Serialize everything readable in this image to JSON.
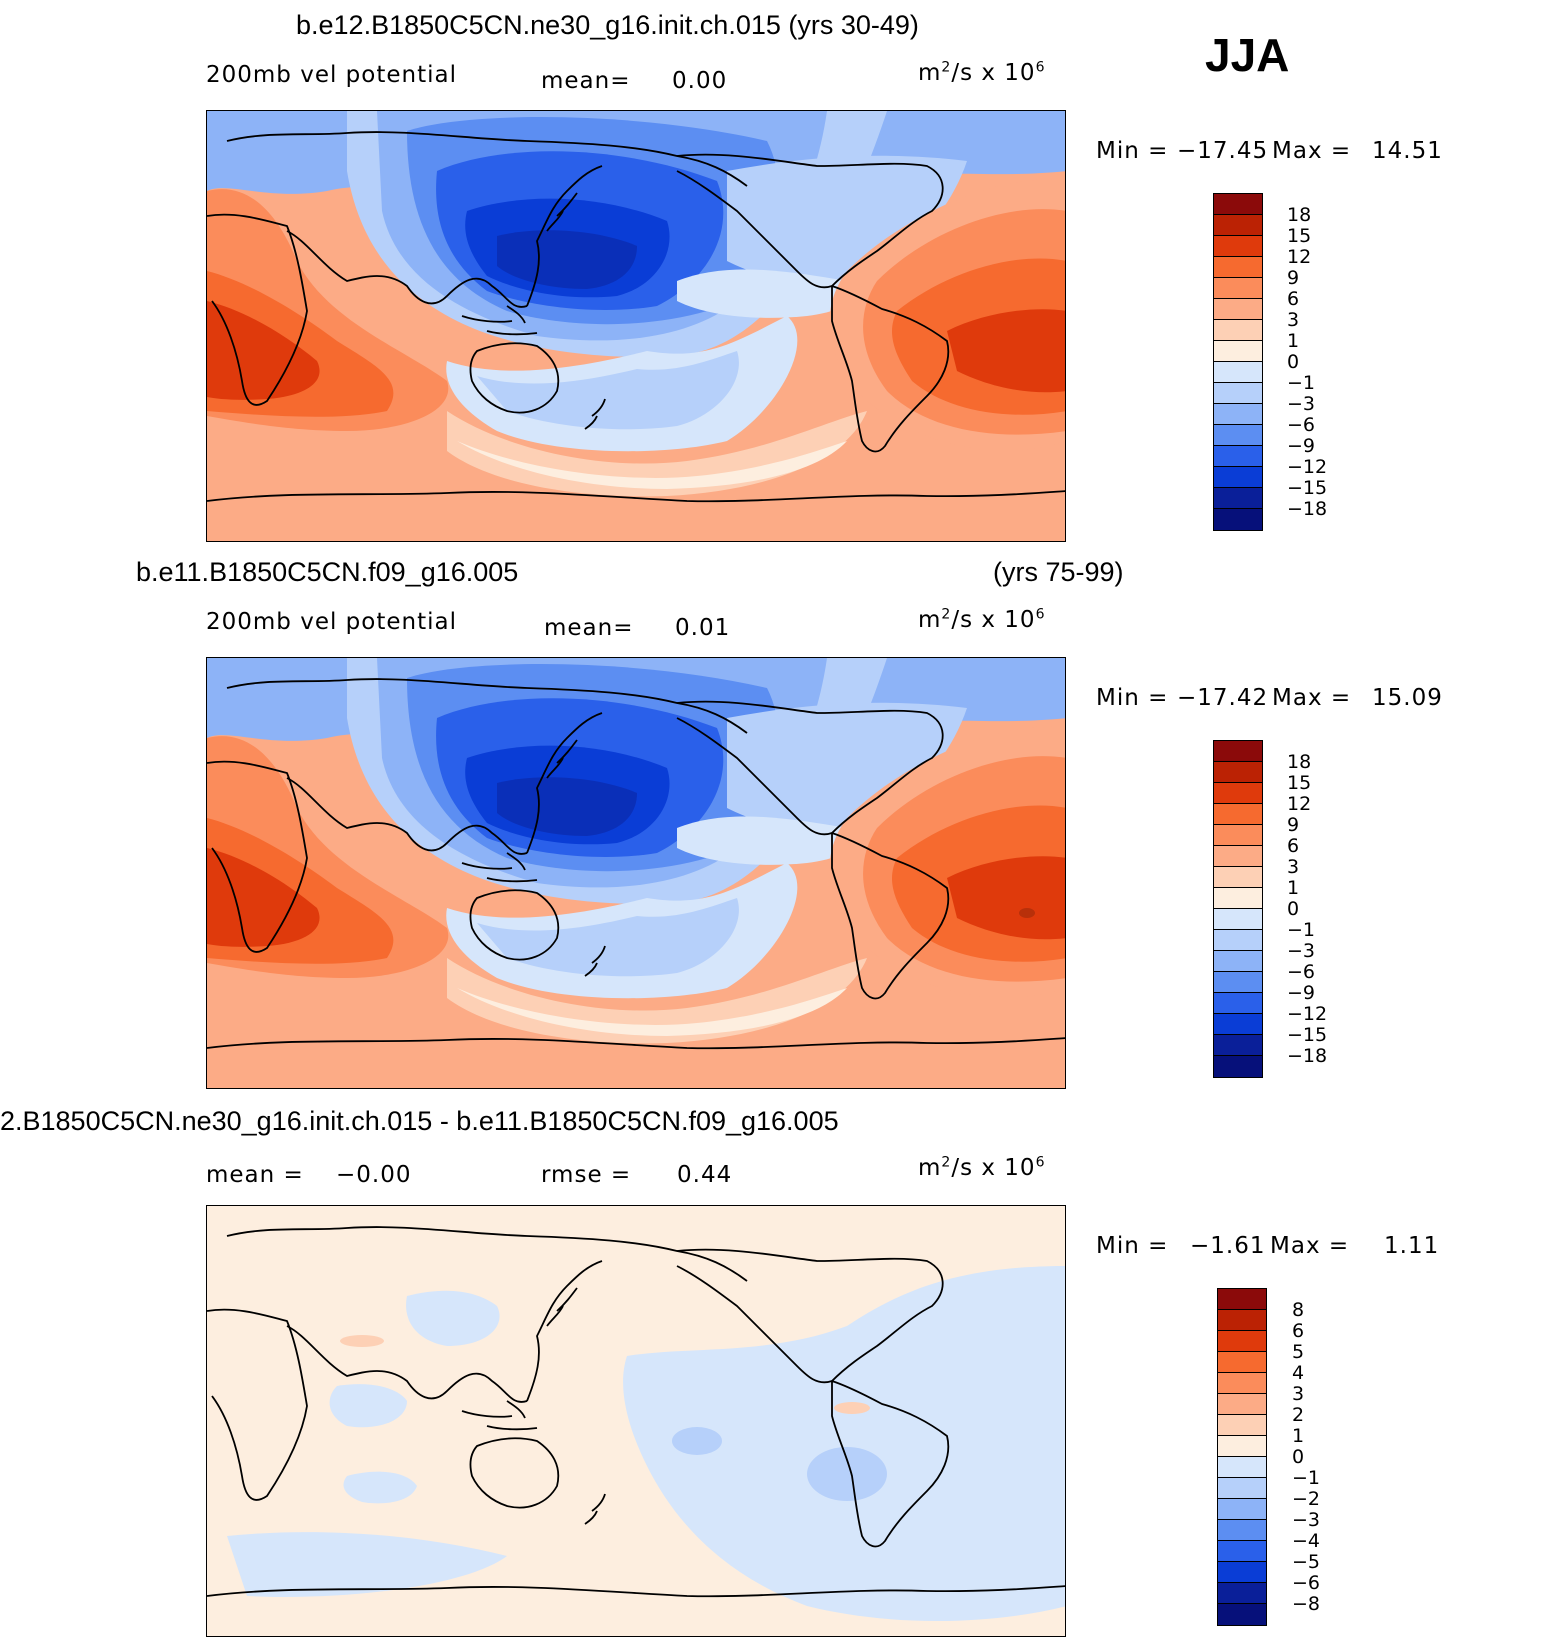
{
  "season": "JJA",
  "units_base": "m",
  "units_rest": "/s x 10",
  "units_sup1": "2",
  "units_sup2": "6",
  "panels": [
    {
      "title": "b.e12.B1850C5CN.ne30_g16.init.ch.015 (yrs 30-49)",
      "variable": "200mb vel potential",
      "stat_label": "mean=",
      "stat_value": "0.00",
      "min_label": "Min =",
      "min_value": "−17.45",
      "max_label": "Max =",
      "max_value": "14.51",
      "colorbar_labels": [
        "18",
        "15",
        "12",
        "9",
        "6",
        "3",
        "1",
        "0",
        "−1",
        "−3",
        "−6",
        "−9",
        "−12",
        "−15",
        "−18"
      ]
    },
    {
      "title": "b.e11.B1850C5CN.f09_g16.005",
      "years": "(yrs 75-99)",
      "variable": "200mb vel potential",
      "stat_label": "mean=",
      "stat_value": "0.01",
      "min_label": "Min =",
      "min_value": "−17.42",
      "max_label": "Max =",
      "max_value": "15.09",
      "colorbar_labels": [
        "18",
        "15",
        "12",
        "9",
        "6",
        "3",
        "1",
        "0",
        "−1",
        "−3",
        "−6",
        "−9",
        "−12",
        "−15",
        "−18"
      ]
    },
    {
      "title": "2.B1850C5CN.ne30_g16.init.ch.015 - b.e11.B1850C5CN.f09_g16.005",
      "stat_label": "mean =",
      "stat_value": "−0.00",
      "stat2_label": "rmse =",
      "stat2_value": "0.44",
      "min_label": "Min =",
      "min_value": "−1.61",
      "max_label": "Max =",
      "max_value": "1.11",
      "colorbar_labels": [
        "8",
        "6",
        "5",
        "4",
        "3",
        "2",
        "1",
        "0",
        "−1",
        "−2",
        "−3",
        "−4",
        "−5",
        "−6",
        "−8"
      ]
    }
  ],
  "colorbar_colors": [
    "#8b0a0a",
    "#bb2204",
    "#df3a0c",
    "#f66a2f",
    "#fb8c5b",
    "#fcab86",
    "#fdd0b5",
    "#fdeedf",
    "#d6e6fb",
    "#b6d0fa",
    "#8db3f7",
    "#5c8ef2",
    "#2a60ea",
    "#0a3dd6",
    "#0a1f99",
    "#06107a"
  ],
  "map_colors": {
    "neg18": "#0a2fb8",
    "neg15": "#0a3dd6",
    "neg12": "#2a60ea",
    "neg9": "#5c8ef2",
    "neg6": "#8db3f7",
    "neg3": "#b6d0fa",
    "neg1": "#d6e6fb",
    "pos0": "#fdeedf",
    "pos1": "#fdd0b5",
    "pos3": "#fcab86",
    "pos6": "#fb8c5b",
    "pos9": "#f66a2f",
    "pos12": "#df3a0c"
  }
}
